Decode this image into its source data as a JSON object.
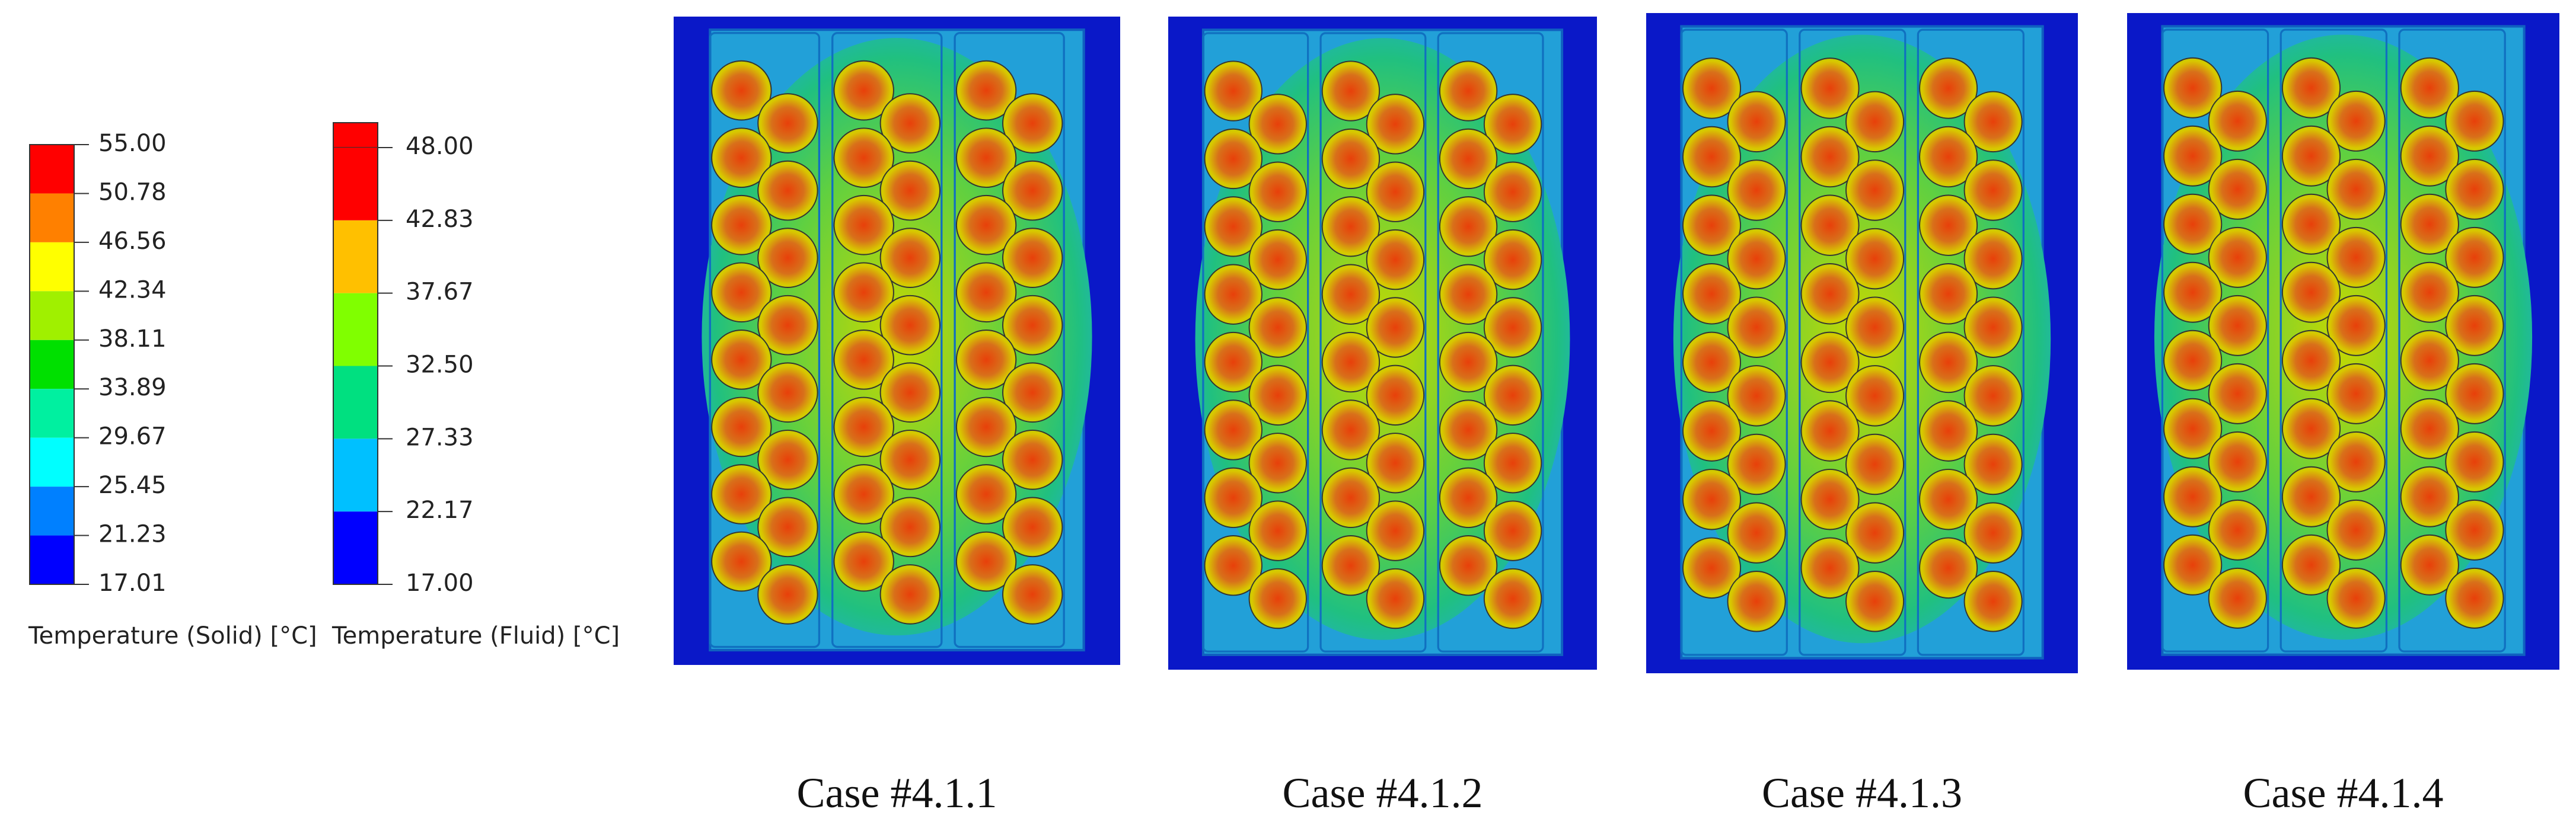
{
  "legends": [
    {
      "title": "Temperature (Solid) [°C]",
      "labels": [
        "55.00",
        "50.78",
        "46.56",
        "42.34",
        "38.11",
        "33.89",
        "29.67",
        "25.45",
        "21.23",
        "17.01"
      ],
      "colors": [
        "#ff0000",
        "#ff8000",
        "#ffff00",
        "#a0f000",
        "#00e000",
        "#00f0a0",
        "#00ffff",
        "#0080ff",
        "#0000ff"
      ]
    },
    {
      "title": "Temperature (Fluid) [°C]",
      "labels": [
        "48.00",
        "42.83",
        "37.67",
        "32.50",
        "27.33",
        "22.17",
        "17.00"
      ],
      "colors": [
        "#ff0000",
        "#ffc000",
        "#80ff00",
        "#00e080",
        "#00c0ff",
        "#0000ff"
      ]
    }
  ],
  "cases": [
    {
      "label": "Case #4.1.1"
    },
    {
      "label": "Case #4.1.2"
    },
    {
      "label": "Case #4.1.3"
    },
    {
      "label": "Case #4.1.4"
    }
  ]
}
